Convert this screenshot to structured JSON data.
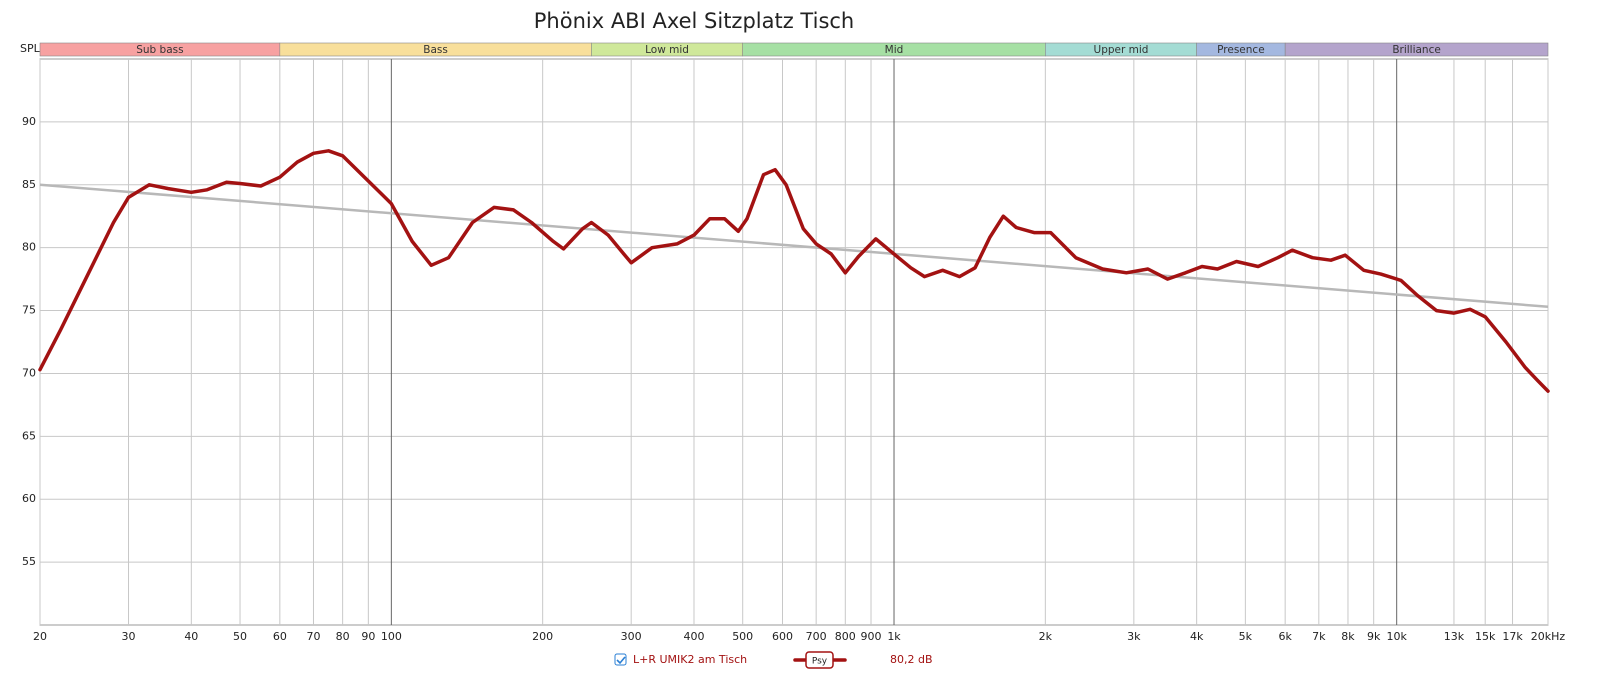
{
  "chart_data": {
    "type": "line",
    "title": "Phönix ABI Axel Sitzplatz Tisch",
    "y_axis_label": "SPL",
    "log_x": true,
    "grid": true,
    "xlim": [
      20,
      20000
    ],
    "ylim": [
      50,
      95
    ],
    "yticks": [
      55,
      60,
      65,
      70,
      75,
      80,
      85,
      90
    ],
    "xticks": [
      20,
      30,
      40,
      50,
      60,
      70,
      80,
      90,
      100,
      200,
      300,
      400,
      500,
      600,
      700,
      800,
      900,
      {
        "value": 1000,
        "label": "1k"
      },
      {
        "value": 2000,
        "label": "2k"
      },
      {
        "value": 3000,
        "label": "3k"
      },
      {
        "value": 4000,
        "label": "4k"
      },
      {
        "value": 5000,
        "label": "5k"
      },
      {
        "value": 6000,
        "label": "6k"
      },
      {
        "value": 7000,
        "label": "7k"
      },
      {
        "value": 8000,
        "label": "8k"
      },
      {
        "value": 9000,
        "label": "9k"
      },
      {
        "value": 10000,
        "label": "10k"
      },
      {
        "value": 13000,
        "label": "13k"
      },
      {
        "value": 15000,
        "label": "15k"
      },
      {
        "value": 17000,
        "label": "17k"
      },
      {
        "value": 20000,
        "label": "20kHz"
      }
    ],
    "bands": [
      {
        "name": "Sub bass",
        "from": 20,
        "to": 60,
        "color": "#f7a1a1"
      },
      {
        "name": "Bass",
        "from": 60,
        "to": 250,
        "color": "#f8df9b"
      },
      {
        "name": "Low mid",
        "from": 250,
        "to": 500,
        "color": "#cfe89a"
      },
      {
        "name": "Mid",
        "from": 500,
        "to": 2000,
        "color": "#a6e0a4"
      },
      {
        "name": "Upper mid",
        "from": 2000,
        "to": 4000,
        "color": "#a4dcd4"
      },
      {
        "name": "Presence",
        "from": 4000,
        "to": 6000,
        "color": "#a4b8e0"
      },
      {
        "name": "Brilliance",
        "from": 6000,
        "to": 20000,
        "color": "#b4a4cc"
      }
    ],
    "trend": {
      "color": "#b8b8b8",
      "x": [
        20,
        20000
      ],
      "values": [
        85,
        75.3
      ]
    },
    "series": [
      {
        "name": "L+R UMIK2 am Tisch",
        "tag": "Psy",
        "reading": "80,2 dB",
        "color": "#a31212",
        "x": [
          20,
          22,
          25,
          28,
          30,
          33,
          36,
          40,
          43,
          47,
          50,
          55,
          60,
          65,
          70,
          75,
          80,
          90,
          100,
          110,
          120,
          130,
          145,
          160,
          175,
          190,
          210,
          220,
          240,
          250,
          270,
          290,
          300,
          330,
          370,
          400,
          430,
          460,
          490,
          510,
          550,
          580,
          610,
          660,
          700,
          750,
          800,
          850,
          920,
          1000,
          1080,
          1150,
          1250,
          1350,
          1450,
          1550,
          1650,
          1750,
          1900,
          2050,
          2300,
          2600,
          2900,
          3200,
          3500,
          3800,
          4100,
          4400,
          4800,
          5300,
          5800,
          6200,
          6800,
          7400,
          7900,
          8600,
          9300,
          10200,
          11000,
          12000,
          13000,
          14000,
          15000,
          16500,
          18000,
          19000,
          20000
        ],
        "values": [
          70.3,
          73.5,
          78,
          82,
          84,
          85,
          84.7,
          84.4,
          84.6,
          85.2,
          85.1,
          84.9,
          85.6,
          86.8,
          87.5,
          87.7,
          87.3,
          85.3,
          83.5,
          80.5,
          78.6,
          79.2,
          82,
          83.2,
          83,
          82,
          80.5,
          79.9,
          81.5,
          82,
          81,
          79.5,
          78.8,
          80,
          80.3,
          81,
          82.3,
          82.3,
          81.3,
          82.3,
          85.8,
          86.2,
          85,
          81.5,
          80.3,
          79.5,
          78,
          79.3,
          80.7,
          79.5,
          78.4,
          77.7,
          78.2,
          77.7,
          78.4,
          80.8,
          82.5,
          81.6,
          81.2,
          81.2,
          79.2,
          78.3,
          78,
          78.3,
          77.5,
          78,
          78.5,
          78.3,
          78.9,
          78.5,
          79.2,
          79.8,
          79.2,
          79,
          79.4,
          78.2,
          77.9,
          77.4,
          76.2,
          75,
          74.8,
          75.1,
          74.5,
          72.5,
          70.5,
          69.5,
          68.6
        ]
      }
    ]
  }
}
